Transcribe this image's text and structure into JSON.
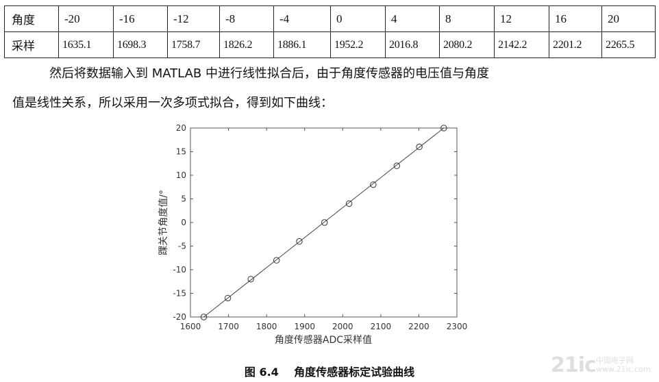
{
  "table": {
    "rows": [
      {
        "label": "角度",
        "cells": [
          "-20",
          "-16",
          "-12",
          "-8",
          "-4",
          "0",
          "4",
          "8",
          "12",
          "16",
          "20"
        ]
      },
      {
        "label": "采样",
        "cells": [
          "1635.1",
          "1698.3",
          "1758.7",
          "1826.2",
          "1886.1",
          "1952.2",
          "2016.8",
          "2080.2",
          "2142.2",
          "2201.2",
          "2265.5"
        ]
      }
    ]
  },
  "paragraph": {
    "line1": "然后将数据输入到 MATLAB 中进行线性拟合后，由于角度传感器的电压值与角度",
    "line2": "值是线性关系，所以采用一次多项式拟合，得到如下曲线："
  },
  "chart_data": {
    "type": "scatter",
    "xlabel": "角度传感器ADC采样值",
    "ylabel": "踝关节角度值/°",
    "xlim": [
      1600,
      2300
    ],
    "ylim": [
      -20,
      20
    ],
    "xticks": [
      "1600",
      "1700",
      "1800",
      "1900",
      "2000",
      "2100",
      "2200",
      "2300"
    ],
    "yticks": [
      "20",
      "15",
      "10",
      "5",
      "0",
      "-5",
      "-10",
      "-15",
      "-20"
    ],
    "grid": false,
    "marker": "circle",
    "fit_line": "linear",
    "points": [
      {
        "x": 1635.1,
        "y": -20
      },
      {
        "x": 1698.3,
        "y": -16
      },
      {
        "x": 1758.7,
        "y": -12
      },
      {
        "x": 1826.2,
        "y": -8
      },
      {
        "x": 1886.1,
        "y": -4
      },
      {
        "x": 1952.2,
        "y": 0
      },
      {
        "x": 2016.8,
        "y": 4
      },
      {
        "x": 2080.2,
        "y": 8
      },
      {
        "x": 2142.2,
        "y": 12
      },
      {
        "x": 2201.2,
        "y": 16
      },
      {
        "x": 2265.5,
        "y": 20
      }
    ]
  },
  "caption": {
    "number": "图 6.4",
    "title": "角度传感器标定试验曲线"
  },
  "watermark": {
    "text": "21ic",
    "sub_line1": "中国电子网",
    "sub_line2": "www.21ic.com"
  },
  "colors": {
    "text": "#111111",
    "axis": "#555555",
    "marker": "#333333"
  }
}
